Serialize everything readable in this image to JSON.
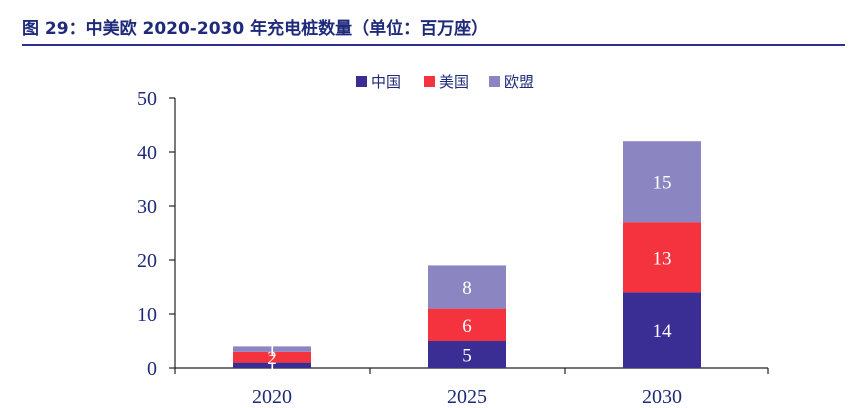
{
  "title": "图 29：中美欧 2020-2030 年充电桩数量（单位：百万座）",
  "chart_data": {
    "type": "bar",
    "stacked": true,
    "categories": [
      "2020",
      "2025",
      "2030"
    ],
    "series": [
      {
        "name": "中国",
        "color": "#3a2e95",
        "values": [
          1,
          5,
          14
        ]
      },
      {
        "name": "美国",
        "color": "#f5333f",
        "values": [
          2,
          6,
          13
        ]
      },
      {
        "name": "欧盟",
        "color": "#8b86c2",
        "values": [
          1,
          8,
          15
        ]
      }
    ],
    "data_labels": [
      [
        "1",
        "5",
        "14"
      ],
      [
        "2",
        "6",
        "13"
      ],
      [
        "1",
        "8",
        "15"
      ]
    ],
    "y_ticks": [
      "0",
      "10",
      "20",
      "30",
      "40",
      "50"
    ],
    "ylim": [
      0,
      50
    ],
    "legend": "top-center",
    "grid": false
  }
}
